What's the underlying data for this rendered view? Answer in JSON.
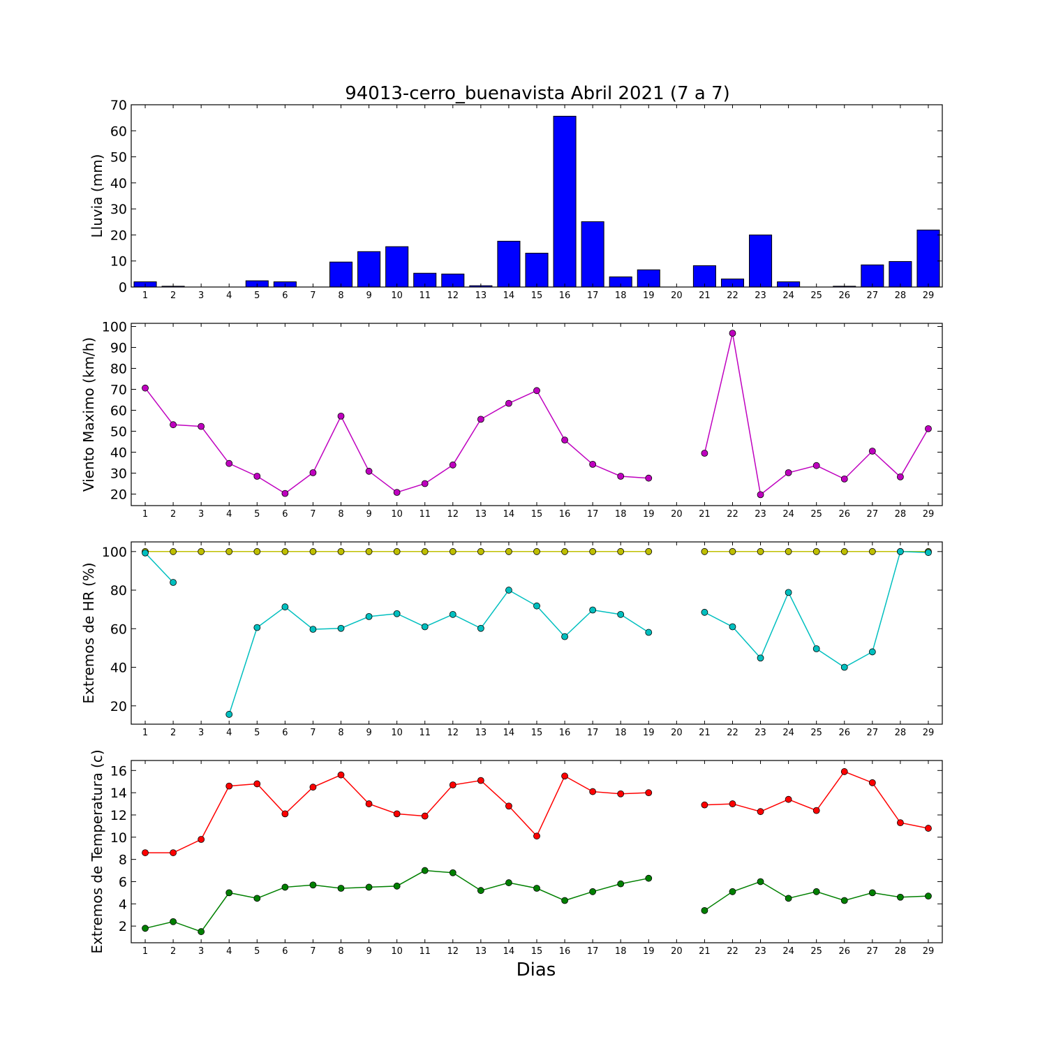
{
  "figure": {
    "title": "94013-cerro_buenavista Abril 2021  (7 a 7)",
    "xlabel": "Dias"
  },
  "chart_data": [
    {
      "type": "bar",
      "ylabel": "Lluvia (mm)",
      "ylim": [
        0,
        70
      ],
      "yticks": [
        0,
        10,
        20,
        30,
        40,
        50,
        60,
        70
      ],
      "xticks": [
        1,
        2,
        3,
        4,
        5,
        6,
        7,
        8,
        9,
        10,
        11,
        12,
        13,
        14,
        15,
        16,
        17,
        18,
        19,
        20,
        21,
        22,
        23,
        24,
        25,
        26,
        27,
        28,
        29
      ],
      "xlim": [
        0.5,
        29.5
      ],
      "grid": false,
      "series": [
        {
          "color": "#0000ff",
          "x": [
            1,
            2,
            3,
            4,
            5,
            6,
            7,
            8,
            9,
            10,
            11,
            12,
            13,
            14,
            15,
            16,
            17,
            18,
            19,
            20,
            21,
            22,
            23,
            24,
            25,
            26,
            27,
            28,
            29
          ],
          "values": [
            2.0,
            0.3,
            0,
            0,
            2.4,
            2.0,
            0,
            9.6,
            13.6,
            15.5,
            5.3,
            5.0,
            0.5,
            17.6,
            13.0,
            65.6,
            25.1,
            3.9,
            6.6,
            null,
            8.2,
            3.1,
            20.0,
            2.0,
            0,
            0.3,
            8.5,
            9.8,
            21.9
          ]
        }
      ]
    },
    {
      "type": "line",
      "ylabel": "Viento Maximo (km/h)",
      "ylim": [
        14.5,
        101.5
      ],
      "yticks": [
        20,
        30,
        40,
        50,
        60,
        70,
        80,
        90,
        100
      ],
      "xticks": [
        1,
        2,
        3,
        4,
        5,
        6,
        7,
        8,
        9,
        10,
        11,
        12,
        13,
        14,
        15,
        16,
        17,
        18,
        19,
        20,
        21,
        22,
        23,
        24,
        25,
        26,
        27,
        28,
        29
      ],
      "xlim": [
        0.5,
        29.5
      ],
      "grid": false,
      "series": [
        {
          "color": "#bf00bf",
          "x": [
            1,
            2,
            3,
            4,
            5,
            6,
            7,
            8,
            9,
            10,
            11,
            12,
            13,
            14,
            15,
            16,
            17,
            18,
            19,
            20,
            21,
            22,
            23,
            24,
            25,
            26,
            27,
            28,
            29
          ],
          "values": [
            70.6,
            53.1,
            52.3,
            34.6,
            28.5,
            20.3,
            30.2,
            57.2,
            30.9,
            20.8,
            25.0,
            33.9,
            55.7,
            63.3,
            69.4,
            45.8,
            34.2,
            28.5,
            27.6,
            null,
            39.5,
            96.8,
            19.7,
            30.2,
            33.6,
            27.2,
            40.5,
            28.2,
            51.2
          ]
        }
      ]
    },
    {
      "type": "line",
      "ylabel": "Extremos de HR (%)",
      "ylim": [
        10.5,
        105
      ],
      "yticks": [
        20,
        40,
        60,
        80,
        100
      ],
      "xticks": [
        1,
        2,
        3,
        4,
        5,
        6,
        7,
        8,
        9,
        10,
        11,
        12,
        13,
        14,
        15,
        16,
        17,
        18,
        19,
        20,
        21,
        22,
        23,
        24,
        25,
        26,
        27,
        28,
        29
      ],
      "xlim": [
        0.5,
        29.5
      ],
      "grid": false,
      "series": [
        {
          "color": "#bfbf00",
          "x": [
            1,
            2,
            3,
            4,
            5,
            6,
            7,
            8,
            9,
            10,
            11,
            12,
            13,
            14,
            15,
            16,
            17,
            18,
            19,
            20,
            21,
            22,
            23,
            24,
            25,
            26,
            27,
            28,
            29
          ],
          "values": [
            100,
            100,
            100,
            100,
            100,
            100,
            100,
            100,
            100,
            100,
            100,
            100,
            100,
            100,
            100,
            100,
            100,
            100,
            100,
            null,
            100,
            100,
            100,
            100,
            100,
            100,
            100,
            100,
            100
          ]
        },
        {
          "color": "#00bfbf",
          "x": [
            1,
            2,
            3,
            4,
            5,
            6,
            7,
            8,
            9,
            10,
            11,
            12,
            13,
            14,
            15,
            16,
            17,
            18,
            19,
            20,
            21,
            22,
            23,
            24,
            25,
            26,
            27,
            28,
            29
          ],
          "values": [
            99.3,
            84.0,
            null,
            15.6,
            60.6,
            71.3,
            59.7,
            60.2,
            66.3,
            67.8,
            61.0,
            67.4,
            60.2,
            80.0,
            71.8,
            55.9,
            69.7,
            67.4,
            58.1,
            null,
            68.5,
            61.0,
            44.8,
            78.8,
            49.6,
            40.0,
            48.0,
            100,
            99.5
          ]
        }
      ]
    },
    {
      "type": "line",
      "ylabel": "Extremos de Temperatura (c)",
      "ylim": [
        0.5,
        16.9
      ],
      "yticks": [
        2,
        4,
        6,
        8,
        10,
        12,
        14,
        16
      ],
      "xticks": [
        1,
        2,
        3,
        4,
        5,
        6,
        7,
        8,
        9,
        10,
        11,
        12,
        13,
        14,
        15,
        16,
        17,
        18,
        19,
        20,
        21,
        22,
        23,
        24,
        25,
        26,
        27,
        28,
        29
      ],
      "xlim": [
        0.5,
        29.5
      ],
      "grid": false,
      "series": [
        {
          "color": "#ff0000",
          "x": [
            1,
            2,
            3,
            4,
            5,
            6,
            7,
            8,
            9,
            10,
            11,
            12,
            13,
            14,
            15,
            16,
            17,
            18,
            19,
            20,
            21,
            22,
            23,
            24,
            25,
            26,
            27,
            28,
            29
          ],
          "values": [
            8.6,
            8.6,
            9.8,
            14.6,
            14.8,
            12.1,
            14.5,
            15.6,
            13.0,
            12.1,
            11.9,
            14.7,
            15.1,
            12.8,
            10.1,
            15.5,
            14.1,
            13.9,
            14.0,
            null,
            12.9,
            13.0,
            12.3,
            13.4,
            12.4,
            15.9,
            14.9,
            11.3,
            10.8
          ]
        },
        {
          "color": "#008000",
          "x": [
            1,
            2,
            3,
            4,
            5,
            6,
            7,
            8,
            9,
            10,
            11,
            12,
            13,
            14,
            15,
            16,
            17,
            18,
            19,
            20,
            21,
            22,
            23,
            24,
            25,
            26,
            27,
            28,
            29
          ],
          "values": [
            1.8,
            2.4,
            1.5,
            5.0,
            4.5,
            5.5,
            5.7,
            5.4,
            5.5,
            5.6,
            7.0,
            6.8,
            5.2,
            5.9,
            5.4,
            4.3,
            5.1,
            5.8,
            6.3,
            null,
            3.4,
            5.1,
            6.0,
            4.5,
            5.1,
            4.3,
            5.0,
            4.6,
            4.7
          ]
        }
      ]
    }
  ]
}
